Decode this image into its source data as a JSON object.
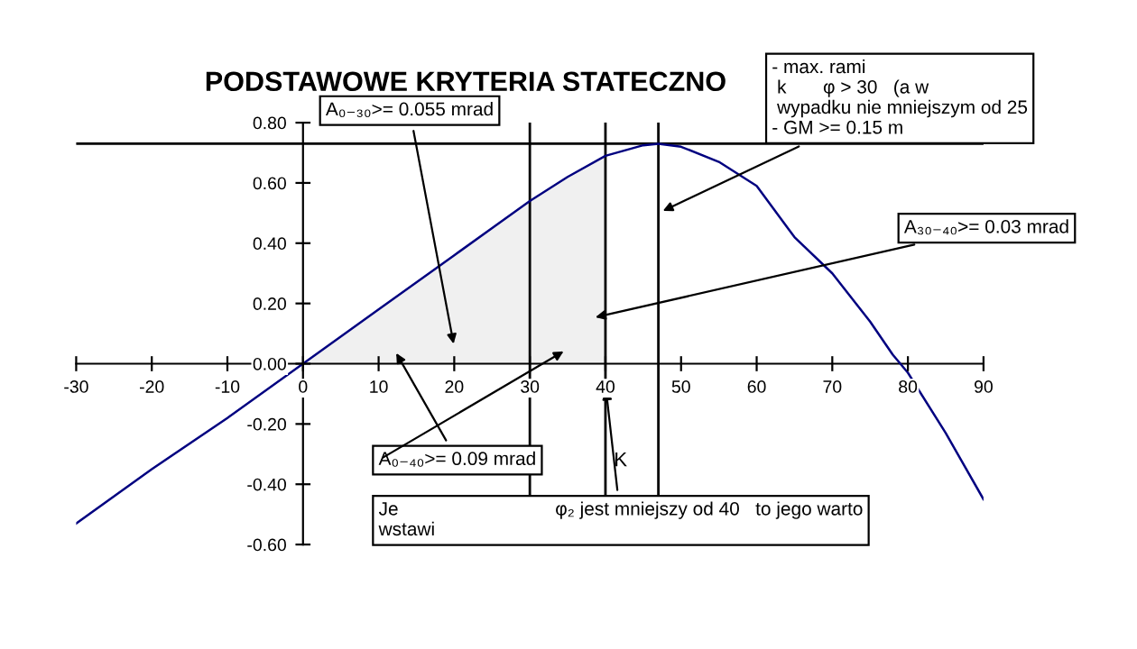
{
  "chart_data": {
    "type": "line",
    "title": "PODSTAWOWE KRYTERIA STATECZNO",
    "xlabel": "K",
    "x": [
      -30,
      -20,
      -10,
      0,
      10,
      20,
      30,
      35,
      40,
      45,
      47,
      50,
      55,
      60,
      65,
      70,
      75,
      78,
      80,
      85,
      90
    ],
    "series": [
      {
        "color": "#000080",
        "values": [
          -0.53,
          -0.35,
          -0.18,
          0,
          0.18,
          0.36,
          0.54,
          0.62,
          0.69,
          0.725,
          0.73,
          0.72,
          0.67,
          0.59,
          0.42,
          0.3,
          0.14,
          0.03,
          -0.03,
          -0.23,
          -0.45
        ]
      },
      {
        "type": "area",
        "color": "#f0f0f0",
        "x": [
          0,
          10,
          20,
          30,
          35,
          40
        ],
        "values": [
          0,
          0.18,
          0.36,
          0.54,
          0.62,
          0.69
        ]
      }
    ],
    "xlim": [
      -30,
      90
    ],
    "xticks": [
      -30,
      -20,
      -10,
      0,
      10,
      20,
      30,
      40,
      50,
      60,
      70,
      80,
      90
    ],
    "ylim": [
      -0.6,
      0.8
    ],
    "yticks": [
      {
        "value": -0.6,
        "label": "-0.60"
      },
      {
        "value": -0.4,
        "label": "-0.40"
      },
      {
        "value": -0.2,
        "label": "-0.20"
      },
      {
        "value": 0,
        "label": "0.00"
      },
      {
        "value": 0.2,
        "label": "0.20"
      },
      {
        "value": 0.4,
        "label": "0.40"
      },
      {
        "value": 0.6,
        "label": "0.60"
      },
      {
        "value": 0.8,
        "label": "0.80"
      }
    ],
    "ref_lines": [
      {
        "axis": "x",
        "value": 30,
        "color": "#000000"
      },
      {
        "axis": "x",
        "value": 40,
        "color": "#000000"
      },
      {
        "axis": "x",
        "value": 47,
        "color": "#000000"
      },
      {
        "axis": "y",
        "value": 0.73,
        "color": "#000000"
      }
    ],
    "annotations": [
      "A₀₋₃₀>= 0.055 mrad",
      {
        "text": "- max. rami\n k       φ > 30   (a w\n wypadku nie mniejszym od 25\n- GM >= 0.15 m",
        "x": 47,
        "y": 0.5
      },
      "A₃₀₋₄₀>= 0.03 mrad",
      "A₀₋₄₀>= 0.09 mrad",
      {
        "text": "Je                              φ₂ jest mniejszy od 40   to jego warto\nwstawi",
        "x": 40,
        "y": -0.07
      }
    ],
    "grid": false,
    "legend": false,
    "marker": "none",
    "line_style": "solid"
  }
}
